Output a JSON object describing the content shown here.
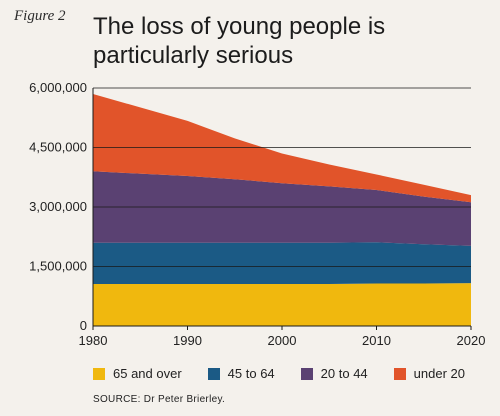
{
  "figure_label": "Figure 2",
  "title": "The loss of young people is particularly serious",
  "source": "SOURCE: Dr Peter Brierley.",
  "chart_data": {
    "type": "area",
    "stacked": true,
    "x": [
      1980,
      1990,
      1995,
      2000,
      2005,
      2010,
      2015,
      2020
    ],
    "x_ticks": [
      1980,
      1990,
      2000,
      2010,
      2020
    ],
    "y_ticks": [
      0,
      1500000,
      3000000,
      4500000,
      6000000
    ],
    "y_tick_labels": [
      "0",
      "1,500,000",
      "3,000,000",
      "4,500,000",
      "6,000,000"
    ],
    "ylim": [
      0,
      6000000
    ],
    "gridlines": "horizontal",
    "legend_position": "bottom",
    "series": [
      {
        "name": "65 and over",
        "color": "#f0b80e",
        "values": [
          1060000,
          1060000,
          1060000,
          1060000,
          1060000,
          1070000,
          1070000,
          1080000
        ]
      },
      {
        "name": "45 to 64",
        "color": "#1b5a85",
        "values": [
          1040000,
          1040000,
          1040000,
          1040000,
          1040000,
          1040000,
          990000,
          940000
        ]
      },
      {
        "name": "20 to 44",
        "color": "#5a4172",
        "values": [
          1800000,
          1680000,
          1600000,
          1500000,
          1420000,
          1320000,
          1200000,
          1100000
        ]
      },
      {
        "name": "under 20",
        "color": "#e1542a",
        "values": [
          1950000,
          1390000,
          1030000,
          750000,
          550000,
          390000,
          300000,
          180000
        ]
      }
    ]
  }
}
